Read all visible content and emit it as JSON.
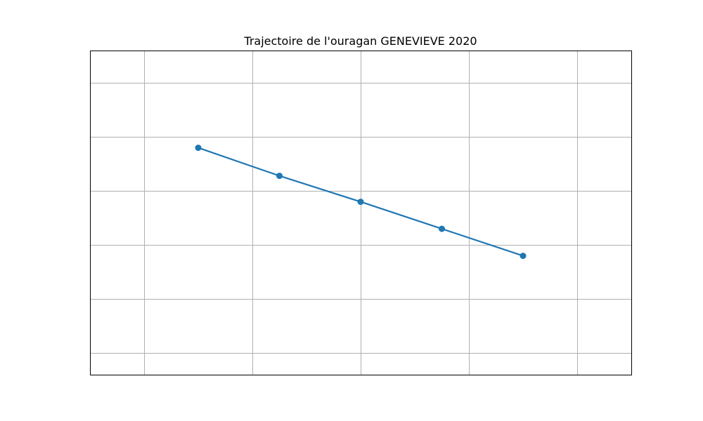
{
  "chart_data": {
    "type": "line",
    "title": "Trajectoire de l'ouragan GENEVIEVE 2020",
    "xlabel": "",
    "ylabel": "",
    "x_ticks_shown": false,
    "y_ticks_shown": false,
    "xlim": [
      -0.75,
      4.25
    ],
    "ylim": [
      -0.1,
      2.9
    ],
    "x_gridlines": [
      -0.25,
      0.75,
      1.75,
      2.75,
      3.75
    ],
    "y_gridlines": [
      0.1,
      0.6,
      1.1,
      1.6,
      2.1,
      2.6
    ],
    "grid": true,
    "legend": false,
    "series": [
      {
        "color": "#1f77b4",
        "marker": "circle",
        "x": [
          0.25,
          1.0,
          1.75,
          2.5,
          3.25
        ],
        "y": [
          2.0,
          1.74,
          1.5,
          1.25,
          1.0
        ]
      }
    ]
  }
}
